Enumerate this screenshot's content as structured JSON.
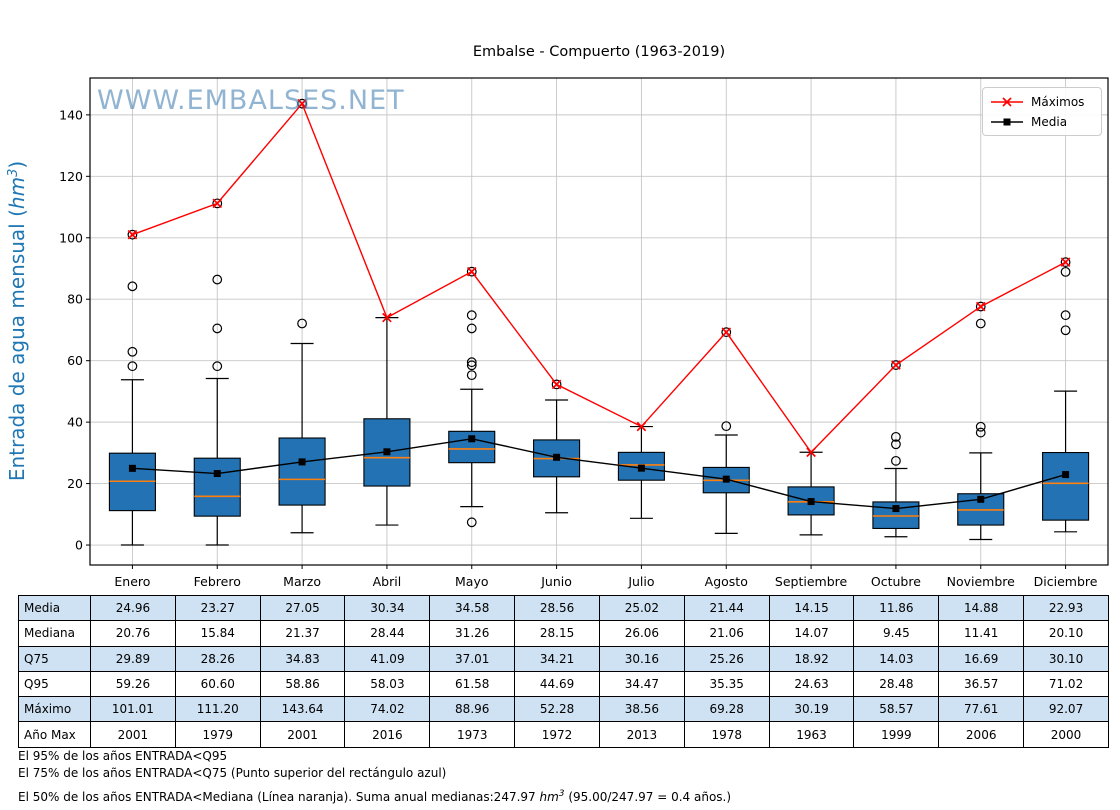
{
  "chart_data": {
    "type": "boxplot+lines",
    "title": "Embalse - Compuerto (1963-2019)",
    "watermark": "WWW.EMBALSES.NET",
    "ylabel": {
      "prefix": "Entrada de agua mensual (",
      "unit": "hm",
      "sup": "3",
      "suffix": ")"
    },
    "months": [
      "Enero",
      "Febrero",
      "Marzo",
      "Abril",
      "Mayo",
      "Junio",
      "Julio",
      "Agosto",
      "Septiembre",
      "Octubre",
      "Noviembre",
      "Diciembre"
    ],
    "yticks": [
      0,
      20,
      40,
      60,
      80,
      100,
      120,
      140
    ],
    "ylim": [
      -6.5,
      152
    ],
    "grid": true,
    "legend": [
      {
        "label": "Máximos",
        "marker": "x",
        "color": "#FF0000"
      },
      {
        "label": "Media",
        "marker": "square",
        "color": "#000000"
      }
    ],
    "series": {
      "maximos": [
        101.01,
        111.2,
        143.64,
        74.02,
        88.96,
        52.28,
        38.56,
        69.28,
        30.19,
        58.57,
        77.61,
        92.07
      ],
      "media": [
        24.96,
        23.27,
        27.05,
        30.34,
        34.58,
        28.56,
        25.02,
        21.44,
        14.15,
        11.86,
        14.88,
        22.93
      ],
      "mediana": [
        20.76,
        15.84,
        21.37,
        28.44,
        31.26,
        28.15,
        26.06,
        21.06,
        14.07,
        9.45,
        11.41,
        20.1
      ],
      "q75": [
        29.89,
        28.26,
        34.83,
        41.09,
        37.01,
        34.21,
        30.16,
        25.26,
        18.92,
        14.03,
        16.69,
        30.1
      ],
      "q95": [
        59.26,
        60.6,
        58.86,
        58.03,
        61.58,
        44.69,
        34.47,
        35.35,
        24.63,
        28.48,
        36.57,
        71.02
      ],
      "q25_est": [
        11.2,
        9.4,
        13.0,
        19.2,
        26.8,
        22.2,
        21.1,
        17.0,
        9.8,
        5.4,
        6.5,
        8.1
      ],
      "whisker_low_est": [
        0.0,
        0.0,
        4.0,
        6.5,
        12.5,
        10.5,
        8.7,
        3.8,
        3.3,
        2.7,
        1.8,
        4.3
      ],
      "whisker_high_est": [
        53.8,
        54.2,
        65.6,
        74.02,
        50.7,
        47.2,
        38.56,
        35.8,
        30.19,
        24.9,
        30.0,
        50.1
      ],
      "outliers_est": [
        [
          58.2,
          62.9,
          84.2,
          101.01
        ],
        [
          58.2,
          70.5,
          86.4,
          111.2
        ],
        [
          72.1,
          143.64
        ],
        [],
        [
          7.4,
          55.3,
          58.5,
          59.5,
          70.5,
          74.8,
          88.96
        ],
        [
          52.28
        ],
        [],
        [
          38.7,
          69.28
        ],
        [],
        [
          27.4,
          32.8,
          35.2,
          58.57
        ],
        [
          36.6,
          38.5,
          72.1,
          77.61
        ],
        [
          69.9,
          74.8,
          88.9,
          92.07
        ]
      ]
    },
    "colors": {
      "box_fill": "#2373B4",
      "box_edge": "#000000",
      "median_line": "#FF7F0E",
      "maximos_line": "#FF0000",
      "media_line": "#000000",
      "grid": "#C6C6C6",
      "ylabel": "#1F77B4",
      "watermark": "#4682B4",
      "table_alt_row": "#CFE2F3"
    }
  },
  "table": {
    "row_labels": [
      "Media",
      "Mediana",
      "Q75",
      "Q95",
      "Máximo",
      "Año Max"
    ],
    "rows": [
      [
        "24.96",
        "23.27",
        "27.05",
        "30.34",
        "34.58",
        "28.56",
        "25.02",
        "21.44",
        "14.15",
        "11.86",
        "14.88",
        "22.93"
      ],
      [
        "20.76",
        "15.84",
        "21.37",
        "28.44",
        "31.26",
        "28.15",
        "26.06",
        "21.06",
        "14.07",
        "9.45",
        "11.41",
        "20.10"
      ],
      [
        "29.89",
        "28.26",
        "34.83",
        "41.09",
        "37.01",
        "34.21",
        "30.16",
        "25.26",
        "18.92",
        "14.03",
        "16.69",
        "30.10"
      ],
      [
        "59.26",
        "60.60",
        "58.86",
        "58.03",
        "61.58",
        "44.69",
        "34.47",
        "35.35",
        "24.63",
        "28.48",
        "36.57",
        "71.02"
      ],
      [
        "101.01",
        "111.20",
        "143.64",
        "74.02",
        "88.96",
        "52.28",
        "38.56",
        "69.28",
        "30.19",
        "58.57",
        "77.61",
        "92.07"
      ],
      [
        "2001",
        "1979",
        "2001",
        "2016",
        "1973",
        "1972",
        "2013",
        "1978",
        "1963",
        "1999",
        "2006",
        "2000"
      ]
    ]
  },
  "footer": {
    "line1": "El 95% de los años ENTRADA<Q95",
    "line2": "El 75% de los años ENTRADA<Q75 (Punto superior del rectángulo azul)",
    "line3": {
      "pre": "El 50% de los años ENTRADA<Mediana (Línea naranja). Suma anual medianas:247.97 ",
      "unit": "hm",
      "sup": "3",
      "post": " (95.00/247.97 = 0.4 años.)"
    }
  }
}
